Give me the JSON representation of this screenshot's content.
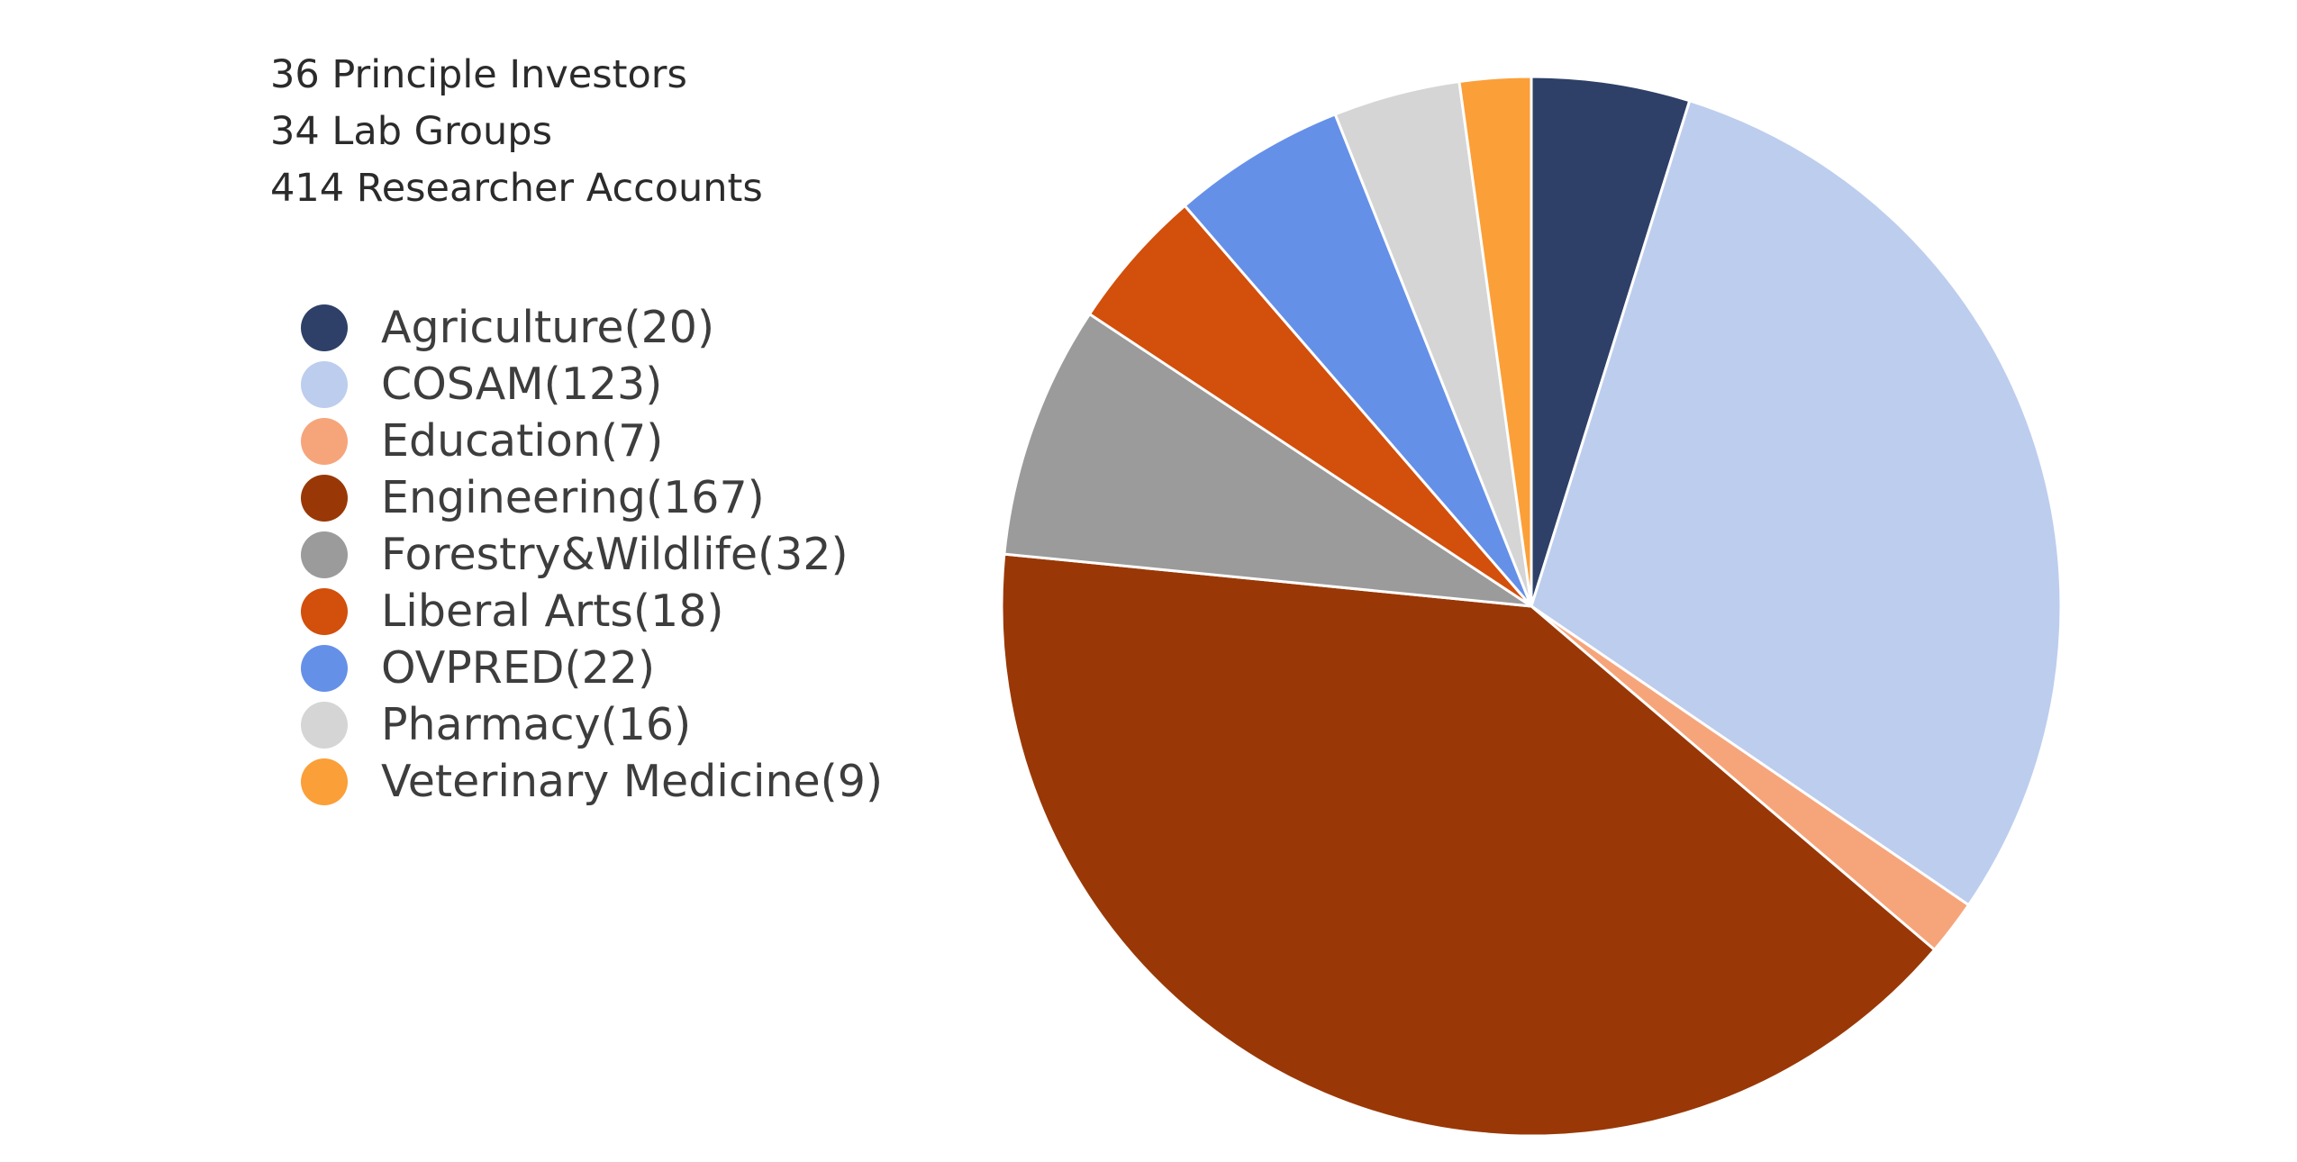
{
  "summary": {
    "lines": [
      "36 Principle Investors",
      "34 Lab Groups",
      "414 Researcher Accounts"
    ]
  },
  "chart_data": {
    "type": "pie",
    "title": "",
    "start_angle": "top (12 o'clock)",
    "direction": "clockwise",
    "legend_placement": "left",
    "slices": [
      {
        "label": "Agriculture(20)",
        "category": "Agriculture",
        "value": 20,
        "color": "#2e4068"
      },
      {
        "label": "COSAM(123)",
        "category": "COSAM",
        "value": 123,
        "color": "#bdcdee"
      },
      {
        "label": "Education(7)",
        "category": "Education",
        "value": 7,
        "color": "#f6a57b"
      },
      {
        "label": "Engineering(167)",
        "category": "Engineering",
        "value": 167,
        "color": "#993806"
      },
      {
        "label": "Forestry&Wildlife(32)",
        "category": "Forestry&Wildlife",
        "value": 32,
        "color": "#9b9b9b"
      },
      {
        "label": "Liberal Arts(18)",
        "category": "Liberal Arts",
        "value": 18,
        "color": "#d24f0c"
      },
      {
        "label": "OVPRED(22)",
        "category": "OVPRED",
        "value": 22,
        "color": "#6590e8"
      },
      {
        "label": "Pharmacy(16)",
        "category": "Pharmacy",
        "value": 16,
        "color": "#d5d5d5"
      },
      {
        "label": "Veterinary Medicine(9)",
        "category": "Veterinary Medicine",
        "value": 9,
        "color": "#fb9f38"
      }
    ]
  }
}
